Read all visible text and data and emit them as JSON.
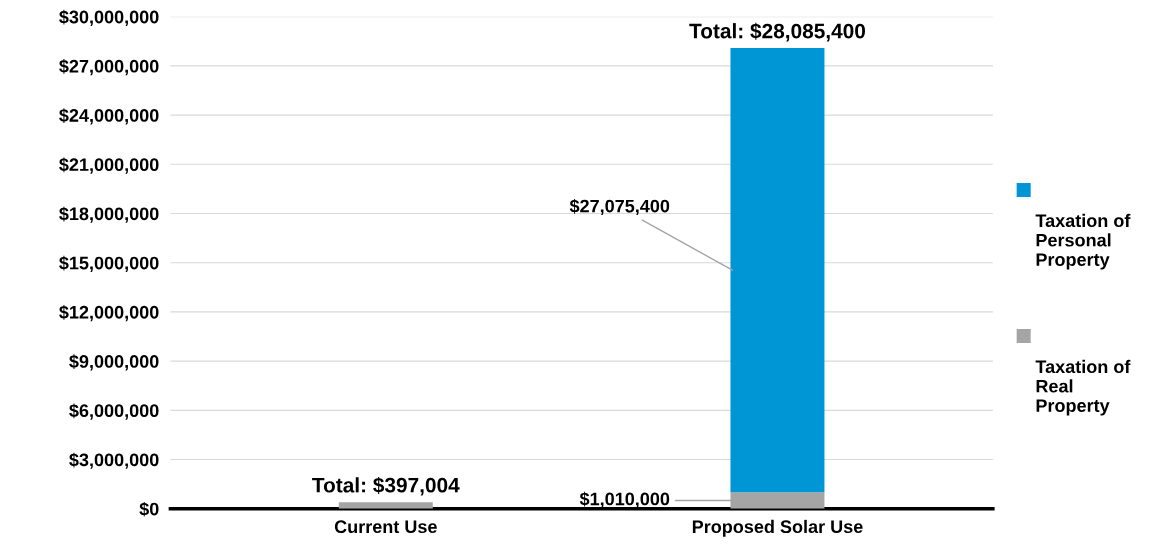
{
  "chart_data": {
    "type": "bar",
    "stacked": true,
    "categories": [
      "Current Use",
      "Proposed Solar Use"
    ],
    "series": [
      {
        "name": "Taxation of Real Property",
        "color": "#a5a5a5",
        "values": [
          397004,
          1010000
        ],
        "value_labels": [
          null,
          "$1,010,000"
        ]
      },
      {
        "name": "Taxation of Personal Property",
        "color": "#0096d6",
        "values": [
          0,
          27075400
        ],
        "value_labels": [
          null,
          "$27,075,400"
        ]
      }
    ],
    "totals": [
      "Total: $397,004",
      "Total: $28,085,400"
    ],
    "ylim": [
      0,
      30000000
    ],
    "yticks": [
      {
        "value": 0,
        "label": "$0"
      },
      {
        "value": 3000000,
        "label": "$3,000,000"
      },
      {
        "value": 6000000,
        "label": "$6,000,000"
      },
      {
        "value": 9000000,
        "label": "$9,000,000"
      },
      {
        "value": 12000000,
        "label": "$12,000,000"
      },
      {
        "value": 15000000,
        "label": "$15,000,000"
      },
      {
        "value": 18000000,
        "label": "$18,000,000"
      },
      {
        "value": 21000000,
        "label": "$21,000,000"
      },
      {
        "value": 24000000,
        "label": "$24,000,000"
      },
      {
        "value": 27000000,
        "label": "$27,000,000"
      },
      {
        "value": 30000000,
        "label": "$30,000,000"
      }
    ],
    "grid": "y",
    "legend": "right"
  }
}
